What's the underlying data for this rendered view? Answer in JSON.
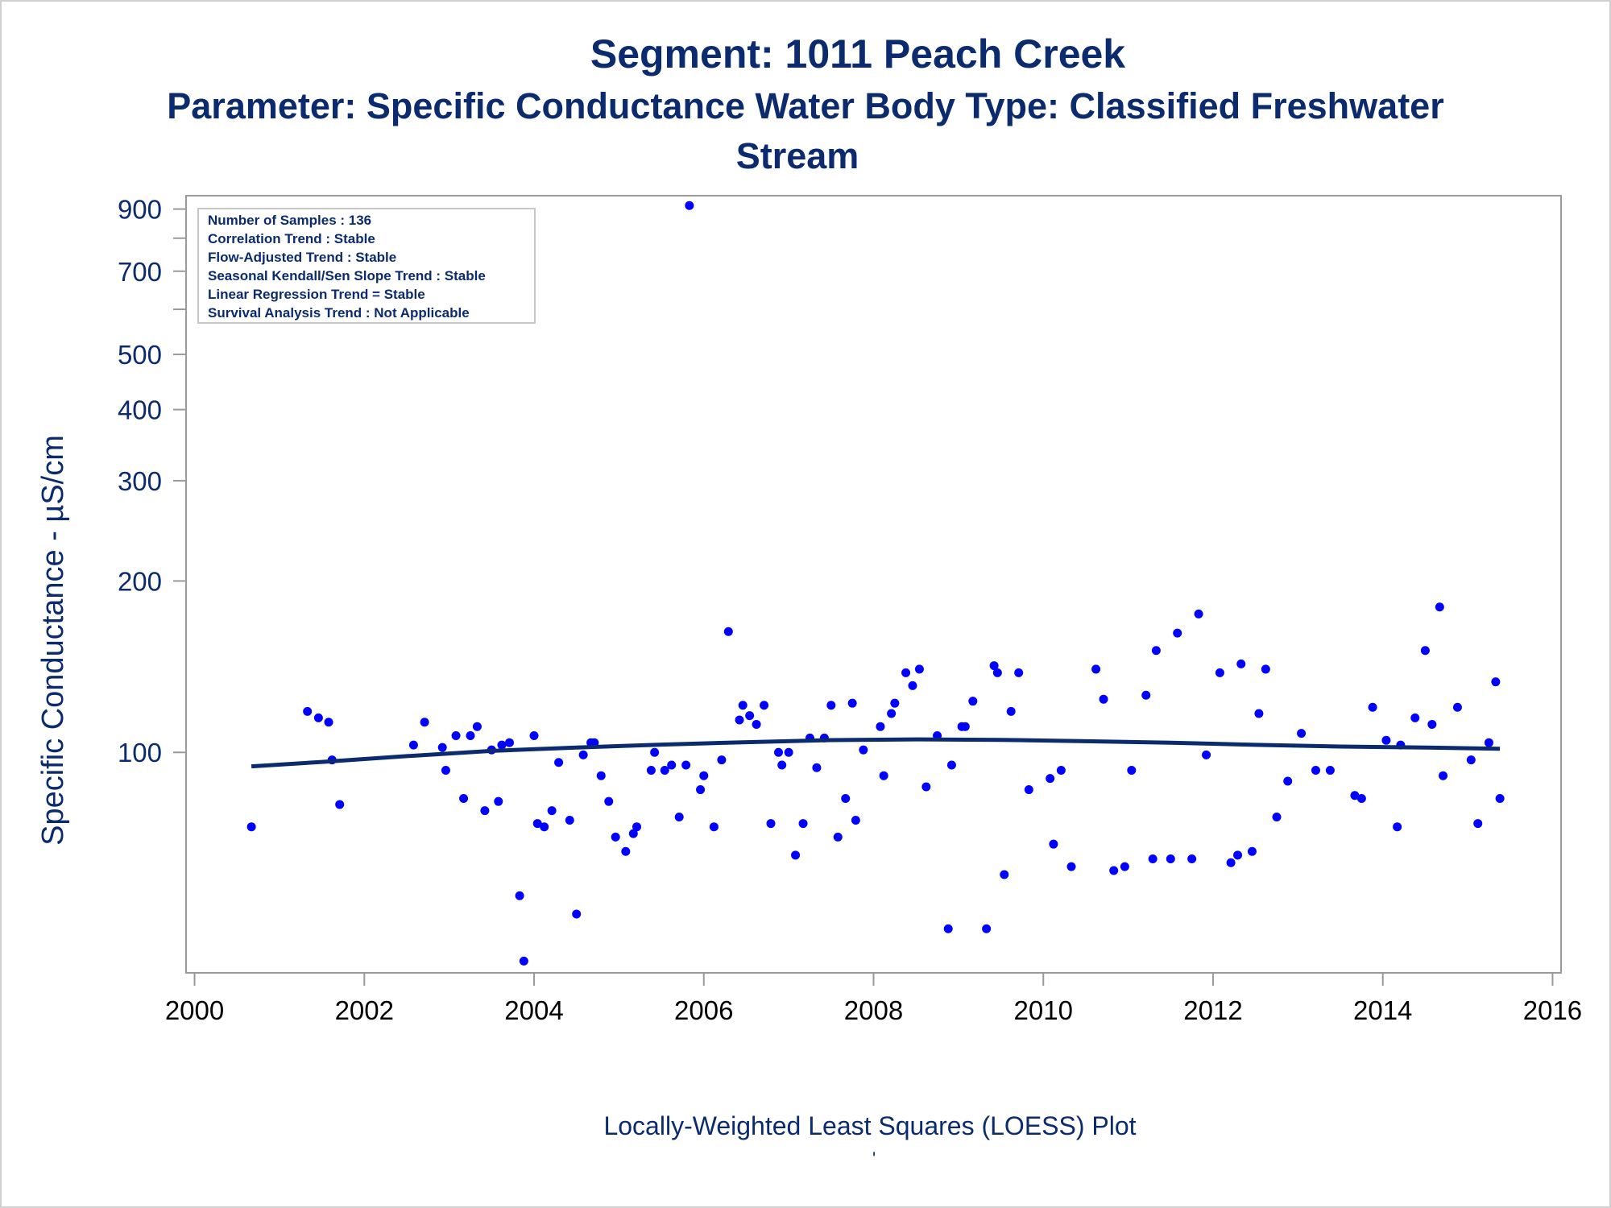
{
  "titles": {
    "line1": "Segment: 1011  Peach Creek",
    "line2": "Parameter: Specific Conductance   Water Body Type: Classified Freshwater",
    "line3": "Stream"
  },
  "footnote": "Locally-Weighted Least Squares (LOESS) Plot",
  "footnote_mark": "'",
  "colors": {
    "text": "#0b2b6e",
    "points": "#0000ff",
    "loess": "#0b2b6e",
    "axis": "#9a9a9a"
  },
  "info_box": [
    "Number of Samples : 136",
    "Correlation Trend : Stable",
    "Flow-Adjusted Trend : Stable",
    "Seasonal Kendall/Sen Slope Trend : Stable",
    "Linear Regression Trend = Stable",
    "Survival Analysis Trend : Not Applicable"
  ],
  "chart_data": {
    "type": "scatter",
    "ylabel": "Specific Conductance -  µS/cm",
    "xlabel": "",
    "y_scale": "log",
    "ylim": [
      41,
      950
    ],
    "xlim": [
      1999.9,
      2016.1
    ],
    "x_ticks": [
      2000,
      2002,
      2004,
      2006,
      2008,
      2010,
      2012,
      2014,
      2016
    ],
    "y_ticks": [
      100,
      200,
      300,
      400,
      500,
      700,
      900
    ],
    "y_minor_ticks": [
      600,
      800
    ],
    "grid": false,
    "points": [
      [
        2000.67,
        74
      ],
      [
        2001.33,
        118
      ],
      [
        2001.46,
        115
      ],
      [
        2001.58,
        113
      ],
      [
        2001.62,
        97
      ],
      [
        2001.71,
        81
      ],
      [
        2002.58,
        103
      ],
      [
        2002.71,
        113
      ],
      [
        2002.92,
        102
      ],
      [
        2002.96,
        93
      ],
      [
        2003.08,
        107
      ],
      [
        2003.17,
        83
      ],
      [
        2003.25,
        107
      ],
      [
        2003.33,
        111
      ],
      [
        2003.42,
        79
      ],
      [
        2003.5,
        101
      ],
      [
        2003.62,
        103
      ],
      [
        2003.58,
        82
      ],
      [
        2003.71,
        104
      ],
      [
        2003.83,
        56
      ],
      [
        2003.88,
        43
      ],
      [
        2004.0,
        107
      ],
      [
        2004.04,
        75
      ],
      [
        2004.12,
        74
      ],
      [
        2004.21,
        79
      ],
      [
        2004.29,
        96
      ],
      [
        2004.42,
        76
      ],
      [
        2004.5,
        52
      ],
      [
        2004.58,
        99
      ],
      [
        2004.67,
        104
      ],
      [
        2004.71,
        104
      ],
      [
        2004.79,
        91
      ],
      [
        2004.88,
        82
      ],
      [
        2004.96,
        71
      ],
      [
        2005.08,
        67
      ],
      [
        2005.17,
        72
      ],
      [
        2005.21,
        74
      ],
      [
        2005.38,
        93
      ],
      [
        2005.42,
        100
      ],
      [
        2005.54,
        93
      ],
      [
        2005.62,
        95
      ],
      [
        2005.71,
        77
      ],
      [
        2005.79,
        95
      ],
      [
        2005.83,
        913
      ],
      [
        2005.96,
        86
      ],
      [
        2006.0,
        91
      ],
      [
        2006.12,
        74
      ],
      [
        2006.21,
        97
      ],
      [
        2006.29,
        163
      ],
      [
        2006.42,
        114
      ],
      [
        2006.46,
        121
      ],
      [
        2006.54,
        116
      ],
      [
        2006.62,
        112
      ],
      [
        2006.71,
        121
      ],
      [
        2006.79,
        75
      ],
      [
        2006.88,
        100
      ],
      [
        2006.92,
        95
      ],
      [
        2007.0,
        100
      ],
      [
        2007.08,
        66
      ],
      [
        2007.17,
        75
      ],
      [
        2007.25,
        106
      ],
      [
        2007.33,
        94
      ],
      [
        2007.42,
        106
      ],
      [
        2007.5,
        121
      ],
      [
        2007.58,
        71
      ],
      [
        2007.67,
        83
      ],
      [
        2007.75,
        122
      ],
      [
        2007.79,
        76
      ],
      [
        2007.88,
        101
      ],
      [
        2008.08,
        111
      ],
      [
        2008.12,
        91
      ],
      [
        2008.21,
        117
      ],
      [
        2008.25,
        122
      ],
      [
        2008.38,
        138
      ],
      [
        2008.46,
        131
      ],
      [
        2008.54,
        140
      ],
      [
        2008.62,
        87
      ],
      [
        2008.75,
        107
      ],
      [
        2008.88,
        49
      ],
      [
        2008.92,
        95
      ],
      [
        2009.04,
        111
      ],
      [
        2009.08,
        111
      ],
      [
        2009.17,
        123
      ],
      [
        2009.33,
        49
      ],
      [
        2009.42,
        142
      ],
      [
        2009.46,
        138
      ],
      [
        2009.54,
        61
      ],
      [
        2009.62,
        118
      ],
      [
        2009.71,
        138
      ],
      [
        2009.83,
        86
      ],
      [
        2010.08,
        90
      ],
      [
        2010.12,
        69
      ],
      [
        2010.21,
        93
      ],
      [
        2010.33,
        63
      ],
      [
        2010.62,
        140
      ],
      [
        2010.71,
        124
      ],
      [
        2010.83,
        62
      ],
      [
        2010.96,
        63
      ],
      [
        2011.04,
        93
      ],
      [
        2011.21,
        126
      ],
      [
        2011.29,
        65
      ],
      [
        2011.33,
        151
      ],
      [
        2011.5,
        65
      ],
      [
        2011.58,
        162
      ],
      [
        2011.75,
        65
      ],
      [
        2011.83,
        175
      ],
      [
        2011.92,
        99
      ],
      [
        2012.08,
        138
      ],
      [
        2012.21,
        64
      ],
      [
        2012.29,
        66
      ],
      [
        2012.33,
        143
      ],
      [
        2012.46,
        67
      ],
      [
        2012.54,
        117
      ],
      [
        2012.62,
        140
      ],
      [
        2012.75,
        77
      ],
      [
        2012.88,
        89
      ],
      [
        2013.04,
        108
      ],
      [
        2013.21,
        93
      ],
      [
        2013.38,
        93
      ],
      [
        2013.67,
        84
      ],
      [
        2013.75,
        83
      ],
      [
        2013.88,
        120
      ],
      [
        2014.04,
        105
      ],
      [
        2014.17,
        74
      ],
      [
        2014.21,
        103
      ],
      [
        2014.38,
        115
      ],
      [
        2014.5,
        151
      ],
      [
        2014.58,
        112
      ],
      [
        2014.67,
        180
      ],
      [
        2014.71,
        91
      ],
      [
        2014.88,
        120
      ],
      [
        2015.04,
        97
      ],
      [
        2015.12,
        75
      ],
      [
        2015.25,
        104
      ],
      [
        2015.33,
        133
      ],
      [
        2015.38,
        83
      ]
    ],
    "loess": [
      [
        2000.67,
        94.5
      ],
      [
        2001.5,
        96.2
      ],
      [
        2002.5,
        98.5
      ],
      [
        2003.5,
        100.6
      ],
      [
        2004.5,
        102.0
      ],
      [
        2005.5,
        103.2
      ],
      [
        2006.5,
        104.2
      ],
      [
        2007.5,
        105.1
      ],
      [
        2008.5,
        105.4
      ],
      [
        2009.5,
        105.2
      ],
      [
        2010.5,
        104.6
      ],
      [
        2011.5,
        104.0
      ],
      [
        2012.5,
        103.1
      ],
      [
        2013.5,
        102.4
      ],
      [
        2014.5,
        102.0
      ],
      [
        2015.38,
        101.5
      ]
    ]
  }
}
